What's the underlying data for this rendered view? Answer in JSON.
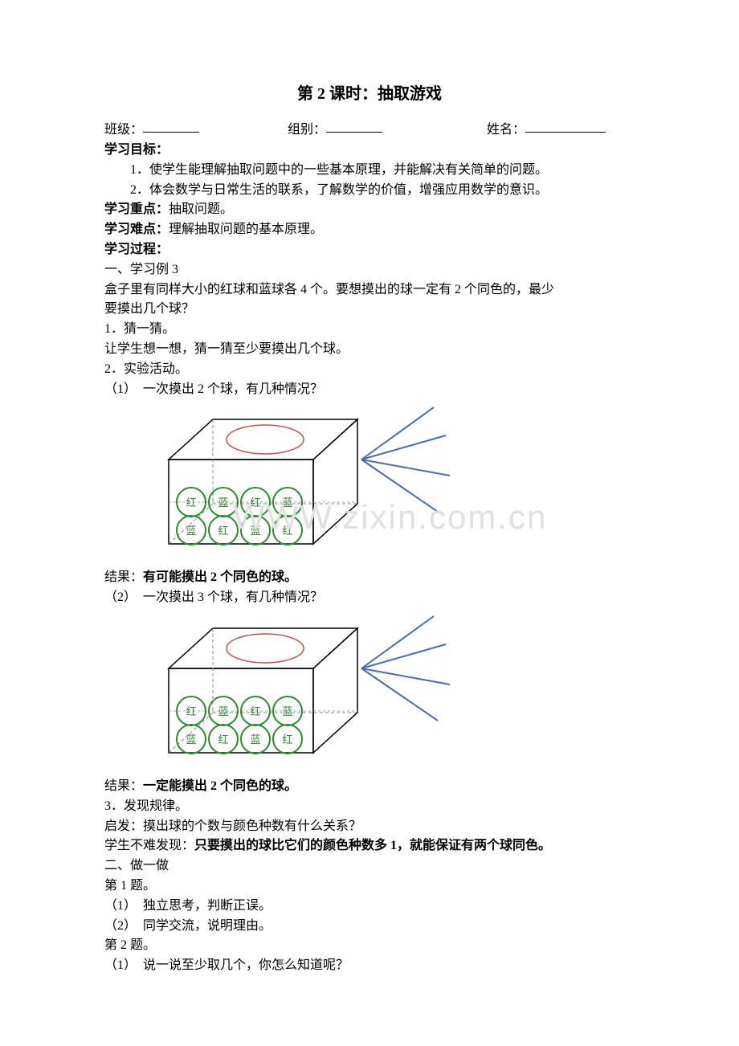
{
  "title": "第 2 课时：抽取游戏",
  "form": {
    "class_label": "班级：",
    "group_label": "组别：",
    "name_label": "姓名："
  },
  "sections": {
    "objectives_label": "学习目标：",
    "obj1": "1．使学生能理解抽取问题中的一些基本原理，并能解决有关简单的问题。",
    "obj2": "2．体会数学与日常生活的联系，了解数学的价值，增强应用数学的意识。",
    "focus_label": "学习重点：",
    "focus_text": "抽取问题。",
    "difficulty_label": "学习难点：",
    "difficulty_text": "理解抽取问题的基本原理。",
    "process_label": "学习过程：",
    "part1_title": "一、学习例 3",
    "example_text1": "盒子里有同样大小的红球和蓝球各 4 个。要想摸出的球一定有 2 个同色的，最少",
    "example_text2": "要摸出几个球？",
    "guess_title": "1．猜一猜。",
    "guess_text": "让学生想一想，猜一猜至少要摸出几个球。",
    "experiment_title": "2．实验活动。",
    "exp1": "（1）　一次摸出 2 个球，有几种情况？",
    "result1_label": "结果：",
    "result1_text": "有可能摸出 2 个同色的球。",
    "exp2": "（2）　一次摸出 3 个球，有几种情况？",
    "result2_label": "结果：",
    "result2_text": "一定能摸出 2 个同色的球。",
    "rule_title": "3．发现规律。",
    "rule_prompt": "启发：摸出球的个数与颜色种数有什么关系？",
    "rule_find_prefix": "学生不难发现：",
    "rule_find_text": "只要摸出的球比它们的颜色种数多 1，就能保证有两个球同色。",
    "part2_title": "二、做一做",
    "q1_title": "第 1 题。",
    "q1_1": "（1）　独立思考，判断正误。",
    "q1_2": "（2）　同学交流，说明理由。",
    "q2_title": "第 2 题。",
    "q2_1": "（1）　说一说至少取几个，你怎么知道呢？"
  },
  "diagram": {
    "ball_labels_row1": [
      "红",
      "蓝",
      "红",
      "蓝"
    ],
    "ball_labels_row2": [
      "蓝",
      "红",
      "蓝",
      "红"
    ],
    "colors": {
      "box_stroke": "#000000",
      "box_dash": "#888888",
      "ellipse_stroke": "#b85450",
      "ball_stroke": "#2d8a2d",
      "ball_text": "#2d8a2d",
      "line_stroke": "#4a6da8"
    }
  },
  "watermark": "WWW.zixin.com.cn"
}
